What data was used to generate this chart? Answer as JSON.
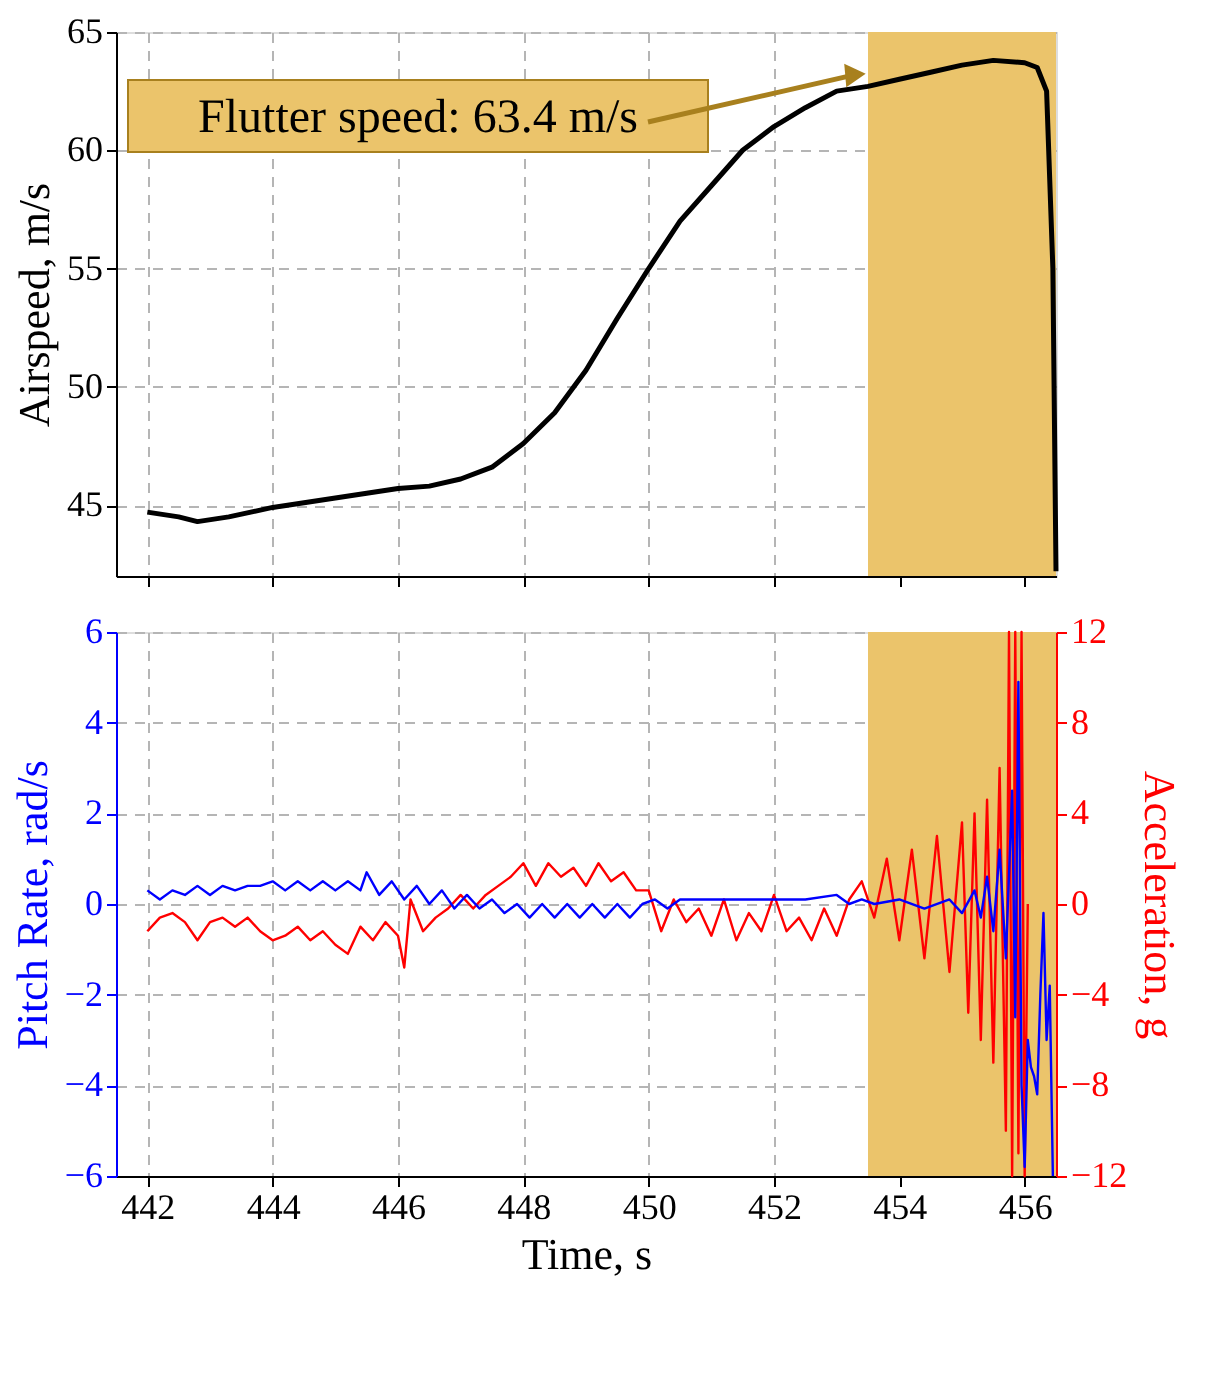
{
  "chart_data": [
    {
      "type": "line",
      "ylabel": "Airspeed, m/s",
      "xlim": [
        441.5,
        456.5
      ],
      "xticks": [
        442,
        444,
        446,
        448,
        450,
        452,
        454,
        456
      ],
      "ylim": [
        42,
        65
      ],
      "yticks": [
        45,
        50,
        55,
        60,
        65
      ],
      "grid": true,
      "tick_labels": "y",
      "line_style": "solid",
      "bands": [
        {
          "axis": "x",
          "from": 453.5,
          "to": 456.5,
          "color": "#ebc46b"
        }
      ],
      "annotations": [
        {
          "text": "Flutter speed: 63.4 m/s",
          "x": 453.3,
          "y": 63.2
        }
      ],
      "series": [
        {
          "color": "#000000",
          "x": [
            442.0,
            442.5,
            442.8,
            443.3,
            444.0,
            445.0,
            446.0,
            446.5,
            447.0,
            447.5,
            448.0,
            448.5,
            449.0,
            449.5,
            450.0,
            450.5,
            451.0,
            451.5,
            452.0,
            452.5,
            453.0,
            453.5,
            454.0,
            454.5,
            455.0,
            455.5,
            456.0,
            456.2,
            456.35,
            456.45,
            456.5
          ],
          "values": [
            44.7,
            44.5,
            44.3,
            44.5,
            44.9,
            45.3,
            45.7,
            45.8,
            46.1,
            46.6,
            47.6,
            48.9,
            50.7,
            52.9,
            55.0,
            57.0,
            58.5,
            60.0,
            61.0,
            61.8,
            62.5,
            62.7,
            63.0,
            63.3,
            63.6,
            63.8,
            63.7,
            63.5,
            62.5,
            55.0,
            42.2
          ]
        }
      ]
    },
    {
      "type": "line",
      "xlabel": "Time, s",
      "ylabel": "Pitch Rate, rad/s",
      "y2label": "Acceleration, g",
      "xlim": [
        441.5,
        456.5
      ],
      "xticks": [
        442,
        444,
        446,
        448,
        450,
        452,
        454,
        456
      ],
      "ylim": [
        -6,
        6
      ],
      "yticks": [
        -6,
        -4,
        -2,
        0,
        2,
        4,
        6
      ],
      "y2lim": [
        -12,
        12
      ],
      "y2ticks": [
        -12,
        -8,
        -4,
        0,
        4,
        8,
        12
      ],
      "grid": true,
      "line_style": "solid",
      "bands": [
        {
          "axis": "x",
          "from": 453.5,
          "to": 456.5,
          "color": "#ebc46b"
        }
      ],
      "series": [
        {
          "color": "#ff0000",
          "axis": "y2",
          "x": [
            442.0,
            442.2,
            442.4,
            442.6,
            442.8,
            443.0,
            443.2,
            443.4,
            443.6,
            443.8,
            444.0,
            444.2,
            444.4,
            444.6,
            444.8,
            445.0,
            445.2,
            445.4,
            445.6,
            445.8,
            446.0,
            446.1,
            446.2,
            446.4,
            446.6,
            446.8,
            447.0,
            447.2,
            447.4,
            447.6,
            447.8,
            448.0,
            448.2,
            448.4,
            448.6,
            448.8,
            449.0,
            449.2,
            449.4,
            449.6,
            449.8,
            450.0,
            450.2,
            450.4,
            450.6,
            450.8,
            451.0,
            451.2,
            451.4,
            451.6,
            451.8,
            452.0,
            452.2,
            452.4,
            452.6,
            452.8,
            453.0,
            453.2,
            453.4,
            453.6,
            453.8,
            454.0,
            454.2,
            454.4,
            454.6,
            454.8,
            455.0,
            455.1,
            455.2,
            455.3,
            455.4,
            455.5,
            455.6,
            455.7,
            455.75,
            455.8,
            455.85,
            455.9,
            455.95,
            456.0,
            456.05
          ],
          "values": [
            -1.2,
            -0.6,
            -0.4,
            -0.8,
            -1.6,
            -0.8,
            -0.6,
            -1.0,
            -0.6,
            -1.2,
            -1.6,
            -1.4,
            -1.0,
            -1.6,
            -1.2,
            -1.8,
            -2.2,
            -1.0,
            -1.6,
            -0.8,
            -1.4,
            -2.8,
            0.2,
            -1.2,
            -0.6,
            -0.2,
            0.4,
            -0.2,
            0.4,
            0.8,
            1.2,
            1.8,
            0.8,
            1.8,
            1.2,
            1.6,
            0.8,
            1.8,
            1.0,
            1.4,
            0.6,
            0.6,
            -1.2,
            0.2,
            -0.8,
            -0.2,
            -1.4,
            0.2,
            -1.6,
            -0.4,
            -1.2,
            0.4,
            -1.2,
            -0.6,
            -1.6,
            -0.2,
            -1.4,
            0.2,
            1.0,
            -0.6,
            2.0,
            -1.6,
            2.4,
            -2.4,
            3.0,
            -3.0,
            3.6,
            -4.8,
            4.0,
            -6.0,
            4.6,
            -7.0,
            6.0,
            -10.0,
            12.0,
            -12.0,
            12.0,
            -11.0,
            12.0,
            -12.0,
            0.0
          ]
        },
        {
          "color": "#0000ff",
          "x": [
            442.0,
            442.2,
            442.4,
            442.6,
            442.8,
            443.0,
            443.2,
            443.4,
            443.6,
            443.8,
            444.0,
            444.2,
            444.4,
            444.6,
            444.8,
            445.0,
            445.2,
            445.4,
            445.5,
            445.7,
            445.9,
            446.1,
            446.3,
            446.5,
            446.7,
            446.9,
            447.1,
            447.3,
            447.5,
            447.7,
            447.9,
            448.1,
            448.3,
            448.5,
            448.7,
            448.9,
            449.1,
            449.3,
            449.5,
            449.7,
            449.9,
            450.1,
            450.3,
            450.5,
            451.0,
            451.5,
            452.0,
            452.5,
            453.0,
            453.2,
            453.4,
            453.6,
            454.0,
            454.4,
            454.8,
            455.0,
            455.2,
            455.3,
            455.4,
            455.5,
            455.6,
            455.7,
            455.8,
            455.85,
            455.9,
            455.95,
            456.0,
            456.05,
            456.1,
            456.15,
            456.2,
            456.25,
            456.3,
            456.35,
            456.4,
            456.45
          ],
          "values": [
            0.3,
            0.1,
            0.3,
            0.2,
            0.4,
            0.2,
            0.4,
            0.3,
            0.4,
            0.4,
            0.5,
            0.3,
            0.5,
            0.3,
            0.5,
            0.3,
            0.5,
            0.3,
            0.7,
            0.2,
            0.5,
            0.1,
            0.4,
            0.0,
            0.3,
            -0.1,
            0.2,
            -0.1,
            0.1,
            -0.2,
            0.0,
            -0.3,
            0.0,
            -0.3,
            0.0,
            -0.3,
            0.0,
            -0.3,
            0.0,
            -0.3,
            0.0,
            0.1,
            -0.1,
            0.1,
            0.1,
            0.1,
            0.1,
            0.1,
            0.2,
            0.0,
            0.1,
            0.0,
            0.1,
            -0.1,
            0.1,
            -0.2,
            0.3,
            -0.3,
            0.6,
            -0.6,
            1.2,
            -1.2,
            2.5,
            -2.5,
            4.9,
            -4.0,
            -5.8,
            -3.0,
            -3.6,
            -3.8,
            -4.2,
            -2.0,
            -0.2,
            -3.0,
            -1.8,
            -6.0
          ]
        }
      ]
    }
  ]
}
